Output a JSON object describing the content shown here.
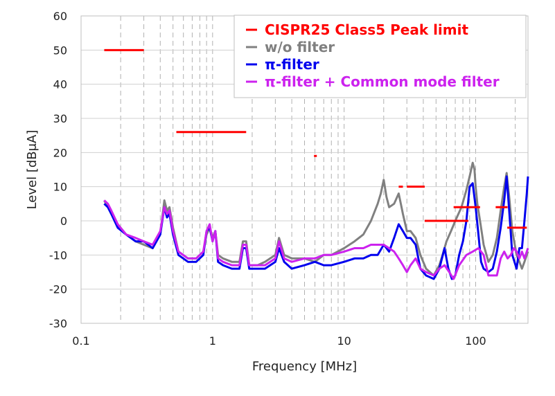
{
  "chart_data": {
    "type": "line",
    "title": "",
    "xlabel": "Frequency [MHz]",
    "ylabel": "Level [dBμA]",
    "x_scale": "log",
    "xlim": [
      0.1,
      250
    ],
    "ylim": [
      -30,
      60
    ],
    "x_ticks": [
      0.1,
      1,
      10,
      100
    ],
    "x_tick_labels": [
      "0.1",
      "1",
      "10",
      "100"
    ],
    "y_ticks": [
      -30,
      -20,
      -10,
      0,
      10,
      20,
      30,
      40,
      50,
      60
    ],
    "y_tick_labels": [
      "-30",
      "-20",
      "-10",
      "0",
      "10",
      "20",
      "30",
      "40",
      "50",
      "60"
    ],
    "grid": {
      "horizontal": "solid",
      "vertical": "dashed minor"
    },
    "legend": {
      "placement": "top-right"
    },
    "series": [
      {
        "name": "CISPR25 Class5 Peak limit",
        "color": "#ff0000",
        "kind": "limit-segments",
        "segments": [
          {
            "x": [
              0.15,
              0.3
            ],
            "y": [
              50,
              50
            ]
          },
          {
            "x": [
              0.53,
              1.8
            ],
            "y": [
              26,
              26
            ]
          },
          {
            "x": [
              5.9,
              6.2
            ],
            "y": [
              19,
              19
            ]
          },
          {
            "x": [
              26,
              28
            ],
            "y": [
              10,
              10
            ]
          },
          {
            "x": [
              30,
              41
            ],
            "y": [
              10,
              10
            ]
          },
          {
            "x": [
              41,
              88
            ],
            "y": [
              0,
              0
            ]
          },
          {
            "x": [
              68,
              108
            ],
            "y": [
              4,
              4
            ]
          },
          {
            "x": [
              142,
              175
            ],
            "y": [
              4,
              4
            ]
          },
          {
            "x": [
              174,
              245
            ],
            "y": [
              -2,
              -2
            ]
          }
        ]
      },
      {
        "name": "w/o filter",
        "color": "#808080",
        "x": [
          0.15,
          0.16,
          0.17,
          0.19,
          0.22,
          0.26,
          0.3,
          0.35,
          0.4,
          0.43,
          0.45,
          0.47,
          0.5,
          0.55,
          0.65,
          0.75,
          0.85,
          0.9,
          0.95,
          1.0,
          1.05,
          1.1,
          1.2,
          1.4,
          1.6,
          1.7,
          1.8,
          1.9,
          2.2,
          2.5,
          3.0,
          3.2,
          3.5,
          4.0,
          5.0,
          6.0,
          7.0,
          8.0,
          10,
          12,
          14,
          16,
          18,
          19,
          20,
          21,
          22,
          24,
          26,
          27,
          28,
          30,
          32,
          35,
          38,
          42,
          48,
          53,
          56,
          60,
          65,
          70,
          78,
          85,
          90,
          95,
          98,
          100,
          103,
          108,
          115,
          125,
          135,
          145,
          155,
          165,
          172,
          180,
          190,
          205,
          215,
          225,
          235,
          245,
          250
        ],
        "y": [
          6,
          4,
          2,
          -1,
          -4,
          -6,
          -7,
          -8,
          -4,
          6,
          3,
          4,
          -2,
          -9,
          -11,
          -11,
          -9,
          -4,
          -2,
          -5,
          -3,
          -10,
          -11,
          -12,
          -12,
          -6,
          -6,
          -13,
          -13,
          -12,
          -10,
          -5,
          -10,
          -11,
          -11,
          -12,
          -10,
          -10,
          -8,
          -6,
          -4,
          0,
          5,
          8,
          12,
          7,
          4,
          5,
          8,
          5,
          2,
          -3,
          -3,
          -5,
          -10,
          -14,
          -16,
          -13,
          -10,
          -6,
          -3,
          0,
          4,
          9,
          13,
          17,
          15,
          10,
          5,
          0,
          -7,
          -12,
          -10,
          -5,
          3,
          10,
          14,
          7,
          -3,
          -10,
          -12,
          -14,
          -12,
          -10,
          -9
        ]
      },
      {
        "name": "π-filter",
        "color": "#0000ee",
        "x": [
          0.15,
          0.16,
          0.17,
          0.19,
          0.22,
          0.26,
          0.3,
          0.35,
          0.4,
          0.43,
          0.45,
          0.47,
          0.5,
          0.55,
          0.65,
          0.75,
          0.85,
          0.9,
          0.95,
          1.0,
          1.05,
          1.1,
          1.2,
          1.4,
          1.6,
          1.7,
          1.8,
          1.9,
          2.2,
          2.5,
          3.0,
          3.2,
          3.5,
          4.0,
          5.0,
          6.0,
          7.0,
          8.0,
          10,
          12,
          14,
          16,
          18,
          20,
          22,
          24,
          26,
          28,
          30,
          32,
          35,
          38,
          42,
          48,
          53,
          58,
          62,
          66,
          70,
          75,
          80,
          85,
          90,
          95,
          100,
          105,
          110,
          115,
          125,
          135,
          145,
          155,
          165,
          172,
          180,
          190,
          205,
          215,
          225,
          235,
          245,
          250
        ],
        "y": [
          5,
          4,
          2,
          -2,
          -4,
          -6,
          -6,
          -8,
          -4,
          4,
          1,
          2,
          -4,
          -10,
          -12,
          -12,
          -10,
          -3,
          -2,
          -6,
          -3,
          -12,
          -13,
          -14,
          -14,
          -8,
          -8,
          -14,
          -14,
          -14,
          -12,
          -8,
          -12,
          -14,
          -13,
          -12,
          -13,
          -13,
          -12,
          -11,
          -11,
          -10,
          -10,
          -7,
          -9,
          -5,
          -1,
          -3,
          -5,
          -5,
          -7,
          -14,
          -16,
          -17,
          -14,
          -8,
          -14,
          -17,
          -16,
          -10,
          -6,
          0,
          10,
          11,
          4,
          -4,
          -12,
          -14,
          -15,
          -14,
          -9,
          -2,
          6,
          13,
          3,
          -10,
          -14,
          -8,
          -8,
          0,
          8,
          13
        ]
      },
      {
        "name": "π-filter + Common mode filter",
        "color": "#cc22ee",
        "x": [
          0.15,
          0.16,
          0.17,
          0.19,
          0.22,
          0.26,
          0.3,
          0.35,
          0.4,
          0.43,
          0.45,
          0.47,
          0.5,
          0.55,
          0.65,
          0.75,
          0.85,
          0.9,
          0.95,
          1.0,
          1.05,
          1.1,
          1.2,
          1.4,
          1.6,
          1.7,
          1.8,
          1.9,
          2.2,
          2.5,
          3.0,
          3.2,
          3.5,
          4.0,
          5.0,
          6.0,
          7.0,
          8.0,
          10,
          12,
          14,
          16,
          18,
          20,
          22,
          24,
          26,
          28,
          30,
          32,
          35,
          38,
          42,
          48,
          53,
          58,
          63,
          68,
          75,
          85,
          95,
          105,
          115,
          125,
          135,
          145,
          155,
          165,
          175,
          185,
          195,
          205,
          215,
          225,
          235,
          245,
          250
        ],
        "y": [
          6,
          5,
          3,
          -1,
          -4,
          -5,
          -6,
          -7,
          -3,
          4,
          2,
          3,
          -3,
          -9,
          -11,
          -11,
          -9,
          -3,
          -1,
          -6,
          -3,
          -11,
          -12,
          -13,
          -13,
          -7,
          -7,
          -13,
          -13,
          -13,
          -11,
          -6,
          -11,
          -12,
          -11,
          -11,
          -10,
          -10,
          -9,
          -8,
          -8,
          -7,
          -7,
          -7,
          -8,
          -9,
          -11,
          -13,
          -15,
          -13,
          -11,
          -14,
          -15,
          -16,
          -14,
          -13,
          -15,
          -17,
          -13,
          -10,
          -9,
          -8,
          -10,
          -16,
          -16,
          -16,
          -11,
          -9,
          -11,
          -10,
          -8,
          -9,
          -11,
          -9,
          -11,
          -9,
          -8
        ]
      }
    ]
  }
}
